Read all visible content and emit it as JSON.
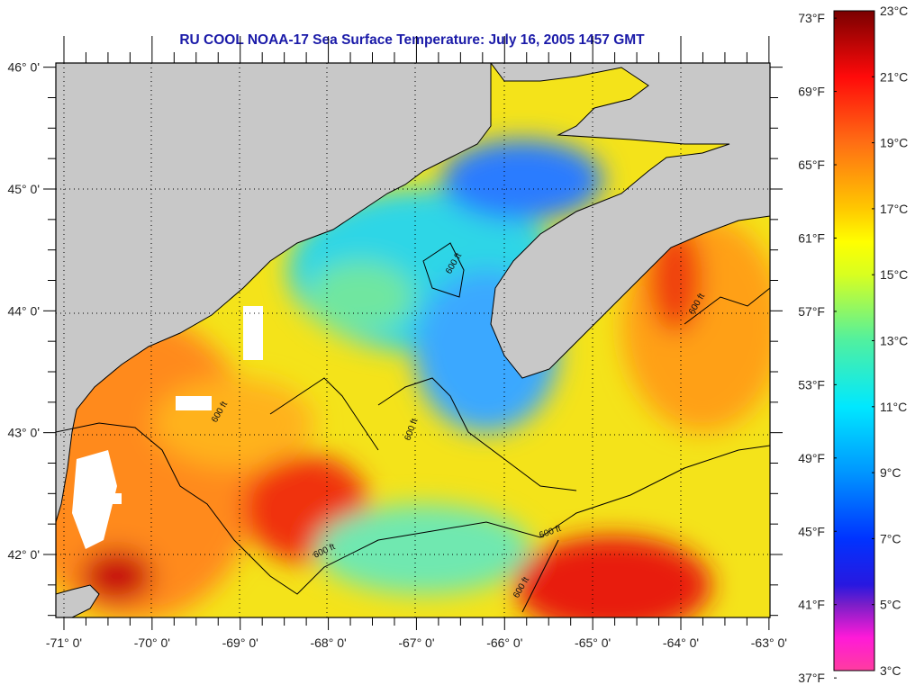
{
  "title": "RU COOL  NOAA-17  Sea Surface Temperature:  July 16, 2005 1457 GMT",
  "map": {
    "type": "sea-surface-temperature",
    "region": "Gulf of Maine",
    "lon_range": [
      -71,
      -63
    ],
    "lat_range": [
      41.5,
      46.0
    ],
    "lon_ticks": [
      "-71° 0'",
      "-70° 0'",
      "-69° 0'",
      "-68° 0'",
      "-67° 0'",
      "-66° 0'",
      "-65° 0'",
      "-64° 0'",
      "-63° 0'"
    ],
    "lat_ticks": [
      "46° 0'",
      "45° 0'",
      "44° 0'",
      "43° 0'",
      "42° 0'"
    ],
    "contour_label": "600 ft",
    "colors": {
      "land": "#c8c8c8",
      "cloud": "#ffffff",
      "coastline": "#000000",
      "title": "#1a1aa8"
    }
  },
  "colorbar": {
    "fahrenheit_labels": [
      "73°F",
      "69°F",
      "65°F",
      "61°F",
      "57°F",
      "53°F",
      "49°F",
      "45°F",
      "41°F",
      "37°F"
    ],
    "celsius_labels": [
      "23°C",
      "21°C",
      "19°C",
      "17°C",
      "15°C",
      "13°C",
      "11°C",
      "9°C",
      "7°C",
      "5°C",
      "3°C"
    ],
    "range_c": [
      3,
      23
    ],
    "stops": [
      {
        "c": 3,
        "color": "#ff3ca0"
      },
      {
        "c": 4,
        "color": "#ff1ad8"
      },
      {
        "c": 5,
        "color": "#7a1ec8"
      },
      {
        "c": 5.6,
        "color": "#2818e0"
      },
      {
        "c": 7,
        "color": "#0033ff"
      },
      {
        "c": 9,
        "color": "#0096ff"
      },
      {
        "c": 11,
        "color": "#00e8ff"
      },
      {
        "c": 13,
        "color": "#50f0a0"
      },
      {
        "c": 15,
        "color": "#d8ff20"
      },
      {
        "c": 16,
        "color": "#ffff00"
      },
      {
        "c": 17,
        "color": "#ffc800"
      },
      {
        "c": 19,
        "color": "#ff6e14"
      },
      {
        "c": 21,
        "color": "#ff0a0a"
      },
      {
        "c": 23,
        "color": "#7a0000"
      }
    ]
  }
}
